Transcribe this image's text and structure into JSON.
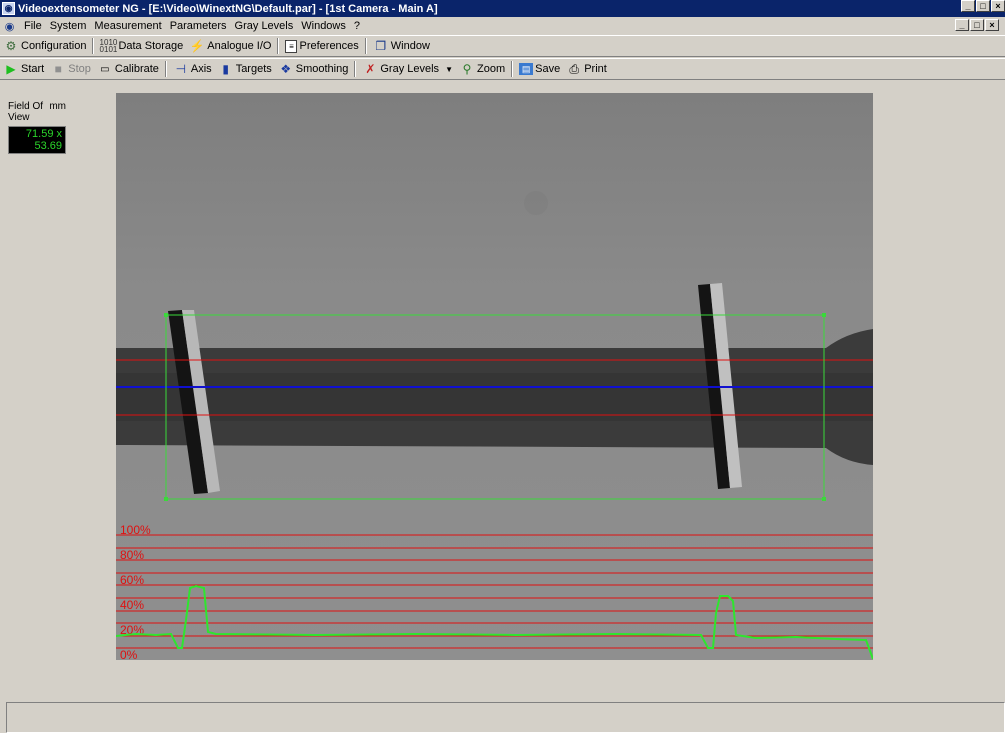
{
  "window": {
    "title": "Videoextensometer NG - [E:\\Video\\WinextNG\\Default.par] - [1st Camera - Main A]",
    "buttons": [
      "_",
      "¡",
      "×"
    ]
  },
  "menu": {
    "items": [
      "File",
      "System",
      "Measurement",
      "Parameters",
      "Gray Levels",
      "Windows",
      "?"
    ]
  },
  "toolbar1": {
    "configuration": "Configuration",
    "data_storage": "Data Storage",
    "analogue_io": "Analogue I/O",
    "preferences": "Preferences",
    "window": "Window"
  },
  "toolbar2": {
    "start": "Start",
    "stop": "Stop",
    "calibrate": "Calibrate",
    "axis": "Axis",
    "targets": "Targets",
    "smoothing": "Smoothing",
    "gray_levels": "Gray Levels",
    "zoom": "Zoom",
    "save": "Save",
    "print": "Print"
  },
  "field_of_view": {
    "label": "Field Of View",
    "unit": "mm",
    "value": "71.59 x 53.69"
  },
  "graylevel_axis": {
    "labels": [
      "100%",
      "80%",
      "60%",
      "40%",
      "20%",
      "0%"
    ]
  },
  "colors": {
    "profile": "#2ee62e",
    "roi": "#3ad93a",
    "center_line": "#1010d0",
    "limit_line": "#e01010",
    "fov_text": "#2bd52b"
  },
  "status": {
    "text": ""
  }
}
